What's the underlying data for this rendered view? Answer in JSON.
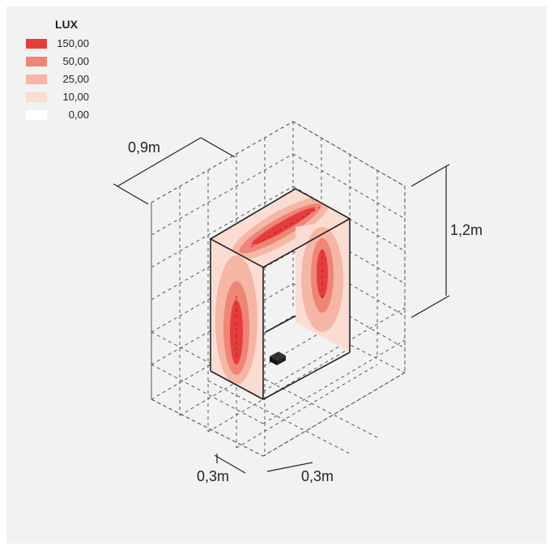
{
  "legend": {
    "title": "LUX",
    "items": [
      {
        "label": "150,00",
        "color": "#e53d3d"
      },
      {
        "label": "50,00",
        "color": "#ee8576"
      },
      {
        "label": "25,00",
        "color": "#f5b6a5"
      },
      {
        "label": "10,00",
        "color": "#fadcd3"
      },
      {
        "label": "0,00",
        "color": "#ffffff"
      }
    ]
  },
  "dimensions": {
    "depth": "0,9m",
    "height": "1,2m",
    "grid_left": "0,3m",
    "grid_right": "0,3m"
  }
}
